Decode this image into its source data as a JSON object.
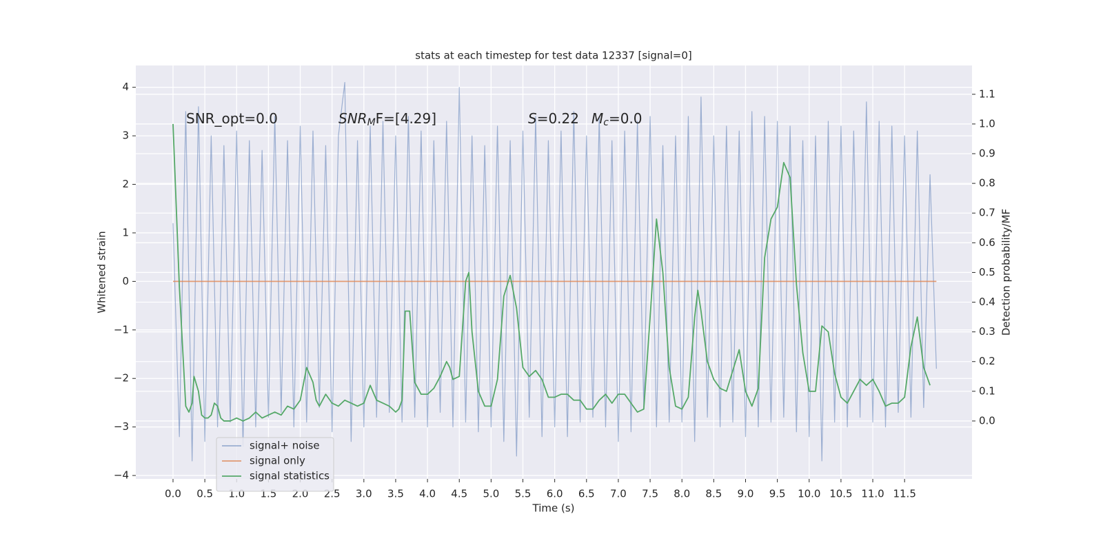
{
  "chart_data": {
    "type": "line",
    "title": "stats at each timestep for test data 12337 [signal=0]",
    "xlabel": "Time (s)",
    "ylabel": "Whitened strain",
    "y2label": "Detection probability/MF",
    "annotations": [
      [
        "SNR_opt=0.0"
      ],
      [
        "SNR",
        "M",
        "F=[4.29]"
      ],
      [
        "S",
        "=0.22"
      ],
      [
        "M",
        "c",
        "=0.0"
      ]
    ],
    "xlim": [
      -0.585,
      12.56
    ],
    "ylim": [
      -4.07,
      4.45
    ],
    "y2lim": [
      -0.195,
      1.197
    ],
    "xticks": [
      {
        "value": 0,
        "label": "0.0"
      },
      0.5,
      {
        "value": 1,
        "label": "1.0"
      },
      1.5,
      {
        "value": 2,
        "label": "2.0"
      },
      2.5,
      {
        "value": 3,
        "label": "3.0"
      },
      3.5,
      {
        "value": 4,
        "label": "4.0"
      },
      4.5,
      {
        "value": 5,
        "label": "5.0"
      },
      5.5,
      {
        "value": 6,
        "label": "6.0"
      },
      6.5,
      {
        "value": 7,
        "label": "7.0"
      },
      7.5,
      {
        "value": 8,
        "label": "8.0"
      },
      8.5,
      {
        "value": 9,
        "label": "9.0"
      },
      9.5,
      {
        "value": 10,
        "label": "10.0"
      },
      10.5,
      {
        "value": 11,
        "label": "11.0"
      },
      11.5
    ],
    "yticks": [
      {
        "value": -4,
        "label": "−4"
      },
      {
        "value": -3,
        "label": "−3"
      },
      {
        "value": -2,
        "label": "−2"
      },
      {
        "value": -1,
        "label": "−1"
      },
      0,
      1,
      2,
      3,
      4
    ],
    "y2ticks": [
      {
        "value": 0,
        "label": "0.0"
      },
      0.1,
      0.2,
      0.3,
      0.4,
      0.5,
      0.6,
      0.7,
      0.8,
      0.9,
      {
        "value": 1,
        "label": "1.0"
      },
      1.1
    ],
    "grid": true,
    "legend": "lower left",
    "series": [
      {
        "name": "signal+ noise",
        "color": "#4c72b0",
        "opacity": 0.5,
        "x": [
          0.0,
          0.1,
          0.2,
          0.3,
          0.4,
          0.5,
          0.6,
          0.7,
          0.8,
          0.9,
          1.0,
          1.1,
          1.2,
          1.3,
          1.4,
          1.5,
          1.6,
          1.7,
          1.8,
          1.9,
          2.0,
          2.1,
          2.2,
          2.3,
          2.4,
          2.5,
          2.6,
          2.7,
          2.8,
          2.9,
          3.0,
          3.1,
          3.2,
          3.3,
          3.4,
          3.5,
          3.6,
          3.7,
          3.8,
          3.9,
          4.0,
          4.1,
          4.2,
          4.3,
          4.4,
          4.5,
          4.6,
          4.7,
          4.8,
          4.9,
          5.0,
          5.1,
          5.2,
          5.3,
          5.4,
          5.5,
          5.6,
          5.7,
          5.8,
          5.9,
          6.0,
          6.1,
          6.2,
          6.3,
          6.4,
          6.5,
          6.6,
          6.7,
          6.8,
          6.9,
          7.0,
          7.1,
          7.2,
          7.3,
          7.4,
          7.5,
          7.6,
          7.7,
          7.8,
          7.9,
          8.0,
          8.1,
          8.2,
          8.3,
          8.4,
          8.5,
          8.6,
          8.7,
          8.8,
          8.9,
          9.0,
          9.1,
          9.2,
          9.3,
          9.4,
          9.5,
          9.6,
          9.7,
          9.8,
          9.9,
          10.0,
          10.1,
          10.2,
          10.3,
          10.4,
          10.5,
          10.6,
          10.7,
          10.8,
          10.9,
          11.0,
          11.1,
          11.2,
          11.3,
          11.4,
          11.5,
          11.6,
          11.7,
          11.8,
          11.9,
          12.0
        ],
        "values": [
          1.2,
          -3.2,
          3.5,
          -3.7,
          3.6,
          -3.3,
          3.0,
          -3.0,
          2.8,
          -2.9,
          3.1,
          -3.4,
          2.9,
          -3.0,
          2.7,
          -2.8,
          3.4,
          -2.7,
          2.9,
          -3.0,
          3.2,
          -2.9,
          3.1,
          -2.6,
          2.8,
          -3.1,
          3.0,
          4.1,
          -3.3,
          2.9,
          -3.0,
          3.2,
          -2.8,
          3.3,
          -2.7,
          3.0,
          -2.9,
          3.4,
          -2.8,
          3.1,
          -3.0,
          2.9,
          -2.7,
          3.3,
          -3.0,
          4.0,
          -2.9,
          3.0,
          -3.1,
          2.8,
          -3.0,
          3.2,
          -3.3,
          2.9,
          -3.6,
          3.1,
          -2.8,
          3.4,
          -3.2,
          2.9,
          -3.0,
          3.1,
          -3.2,
          3.5,
          -2.9,
          3.0,
          -2.8,
          3.4,
          -3.0,
          2.9,
          -3.3,
          3.1,
          -3.1,
          3.3,
          -2.6,
          3.4,
          -3.0,
          2.8,
          -2.9,
          3.0,
          -2.9,
          3.4,
          -3.3,
          3.8,
          -2.8,
          3.0,
          -3.0,
          3.2,
          -2.9,
          3.1,
          -3.2,
          3.5,
          -3.0,
          3.4,
          -2.9,
          3.3,
          -2.8,
          3.2,
          -3.1,
          2.9,
          -3.2,
          3.0,
          -3.7,
          3.3,
          -2.9,
          3.2,
          -3.0,
          3.1,
          -2.8,
          3.7,
          -2.9,
          3.3,
          -3.0,
          3.2,
          -2.7,
          3.0,
          -2.8,
          3.1,
          -2.6,
          2.2,
          -1.8
        ]
      },
      {
        "name": "signal only",
        "color": "#dd8452",
        "opacity": 0.8,
        "x": [
          0.0,
          12.0
        ],
        "values": [
          0,
          0
        ]
      },
      {
        "name": "signal statistics",
        "color": "#55a868",
        "opacity": 1,
        "axis": "y2",
        "x": [
          0.0,
          0.1,
          0.2,
          0.25,
          0.3,
          0.33,
          0.4,
          0.45,
          0.5,
          0.55,
          0.6,
          0.65,
          0.7,
          0.75,
          0.8,
          0.9,
          1.0,
          1.1,
          1.2,
          1.3,
          1.4,
          1.5,
          1.6,
          1.7,
          1.8,
          1.9,
          2.0,
          2.1,
          2.2,
          2.25,
          2.3,
          2.4,
          2.5,
          2.6,
          2.7,
          2.8,
          2.9,
          3.0,
          3.1,
          3.2,
          3.3,
          3.4,
          3.5,
          3.55,
          3.6,
          3.65,
          3.72,
          3.8,
          3.9,
          4.0,
          4.1,
          4.2,
          4.3,
          4.35,
          4.4,
          4.5,
          4.6,
          4.65,
          4.7,
          4.8,
          4.9,
          5.0,
          5.1,
          5.2,
          5.3,
          5.4,
          5.5,
          5.6,
          5.7,
          5.8,
          5.9,
          6.0,
          6.1,
          6.2,
          6.3,
          6.4,
          6.5,
          6.6,
          6.7,
          6.8,
          6.9,
          7.0,
          7.1,
          7.2,
          7.3,
          7.4,
          7.5,
          7.6,
          7.7,
          7.8,
          7.9,
          8.0,
          8.1,
          8.2,
          8.25,
          8.3,
          8.4,
          8.5,
          8.6,
          8.7,
          8.8,
          8.9,
          9.0,
          9.1,
          9.2,
          9.3,
          9.4,
          9.5,
          9.6,
          9.7,
          9.8,
          9.9,
          10.0,
          10.1,
          10.2,
          10.3,
          10.4,
          10.5,
          10.6,
          10.7,
          10.8,
          10.9,
          11.0,
          11.1,
          11.2,
          11.3,
          11.4,
          11.5,
          11.6,
          11.7,
          11.8,
          11.9
        ],
        "values": [
          1.0,
          0.45,
          0.05,
          0.03,
          0.06,
          0.15,
          0.1,
          0.02,
          0.01,
          0.01,
          0.02,
          0.06,
          0.05,
          0.01,
          0.0,
          0.0,
          0.01,
          0.0,
          0.01,
          0.03,
          0.01,
          0.02,
          0.03,
          0.02,
          0.05,
          0.04,
          0.07,
          0.18,
          0.13,
          0.07,
          0.05,
          0.09,
          0.06,
          0.05,
          0.07,
          0.06,
          0.05,
          0.06,
          0.12,
          0.07,
          0.06,
          0.05,
          0.03,
          0.04,
          0.07,
          0.37,
          0.37,
          0.13,
          0.09,
          0.09,
          0.11,
          0.15,
          0.2,
          0.18,
          0.14,
          0.15,
          0.47,
          0.5,
          0.3,
          0.1,
          0.05,
          0.05,
          0.14,
          0.42,
          0.49,
          0.38,
          0.18,
          0.15,
          0.17,
          0.14,
          0.08,
          0.08,
          0.09,
          0.09,
          0.07,
          0.07,
          0.04,
          0.04,
          0.07,
          0.09,
          0.06,
          0.09,
          0.09,
          0.06,
          0.03,
          0.04,
          0.35,
          0.68,
          0.5,
          0.18,
          0.05,
          0.04,
          0.08,
          0.35,
          0.44,
          0.37,
          0.2,
          0.14,
          0.11,
          0.1,
          0.17,
          0.24,
          0.1,
          0.05,
          0.11,
          0.55,
          0.68,
          0.72,
          0.87,
          0.82,
          0.46,
          0.23,
          0.1,
          0.1,
          0.32,
          0.3,
          0.16,
          0.08,
          0.06,
          0.1,
          0.14,
          0.12,
          0.14,
          0.1,
          0.05,
          0.06,
          0.06,
          0.08,
          0.25,
          0.35,
          0.18,
          0.12
        ]
      }
    ]
  }
}
